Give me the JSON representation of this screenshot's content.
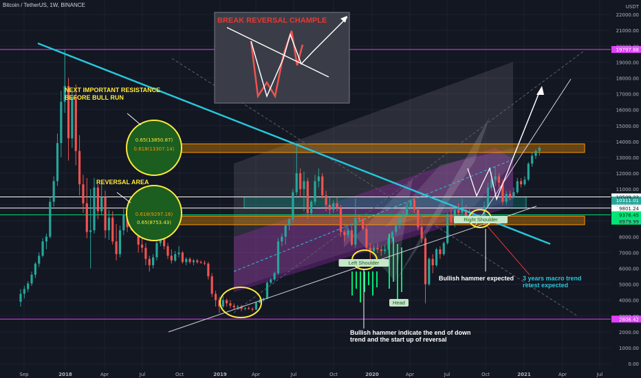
{
  "header": {
    "symbol_title": "Bitcoin / TetherUS, 1W, BINANCE",
    "quote_unit": "USDT"
  },
  "chart_data": {
    "type": "candlestick",
    "title": "Bitcoin / TetherUS, 1W, BINANCE",
    "y_ticks": [
      0,
      1000,
      2000,
      3000,
      4000,
      5000,
      6000,
      7000,
      8000,
      9000,
      10000,
      11000,
      12000,
      13000,
      14000,
      15000,
      16000,
      17000,
      18000,
      19000,
      20000,
      21000,
      22000
    ],
    "y_tick_labels": [
      "0.00",
      "1000.00",
      "2000.00",
      "3000.00",
      "4000.00",
      "5000.00",
      "6000.00",
      "7000.00",
      "8000.00",
      "9000.00",
      "10000.00",
      "11000.00",
      "12000.00",
      "13000.00",
      "14000.00",
      "15000.00",
      "16000.00",
      "17000.00",
      "18000.00",
      "19000.00",
      "20000.00",
      "21000.00",
      "22000.00"
    ],
    "ylim": [
      -300,
      22700
    ],
    "x_tick_labels": [
      "Sep",
      "2018",
      "Apr",
      "Jul",
      "Oct",
      "2019",
      "Apr",
      "Jul",
      "Oct",
      "2020",
      "Apr",
      "Jul",
      "Oct",
      "2021",
      "Apr",
      "Jul"
    ],
    "price_tags": [
      {
        "label": "19797.88",
        "value": 19797.88,
        "color": "#e040fb"
      },
      {
        "label": "10509.22",
        "value": 10509.22,
        "color": "#ffffff"
      },
      {
        "label": "10311.01",
        "value": 10311.01,
        "color": "#26a69a"
      },
      {
        "label": "09:33:15",
        "value": 9900,
        "color": "#26a69a"
      },
      {
        "label": "9801.24",
        "value": 9801.24,
        "color": "#ffffff"
      },
      {
        "label": "9376.45",
        "value": 9376.45,
        "color": "#00e676"
      },
      {
        "label": "8979.99",
        "value": 8979.99,
        "color": "#00e676"
      },
      {
        "label": "2806.42",
        "value": 2806.42,
        "color": "#e040fb"
      }
    ],
    "horizontal_lines": [
      19797.88,
      10509.22,
      9801.24,
      2806.42
    ],
    "fib_labels": [
      "0.65(13850.87)",
      "0.618(13307.14)",
      "0.618(9297.16)",
      "0.65(8753.43)"
    ],
    "fib_levels": [
      13850.87,
      13307.14,
      9297.16,
      8753.43
    ],
    "candles": [
      [
        3900,
        4700,
        3600,
        4400
      ],
      [
        4400,
        4900,
        4100,
        4700
      ],
      [
        4700,
        5200,
        4500,
        5050
      ],
      [
        5050,
        5800,
        4900,
        5600
      ],
      [
        5600,
        6400,
        5400,
        6300
      ],
      [
        6300,
        7000,
        6100,
        6800
      ],
      [
        6800,
        7900,
        6700,
        7700
      ],
      [
        7700,
        8200,
        7200,
        8000
      ],
      [
        8000,
        10500,
        7900,
        10200
      ],
      [
        10200,
        11800,
        9900,
        11500
      ],
      [
        11500,
        14500,
        11200,
        13900
      ],
      [
        13900,
        17200,
        13000,
        16500
      ],
      [
        16500,
        19800,
        15800,
        17500
      ],
      [
        17500,
        18000,
        12800,
        14200
      ],
      [
        14200,
        17100,
        13600,
        16800
      ],
      [
        16800,
        17600,
        12500,
        13400
      ],
      [
        13400,
        14400,
        10600,
        11300
      ],
      [
        11300,
        11900,
        9500,
        10100
      ],
      [
        10100,
        11700,
        7900,
        8300
      ],
      [
        8300,
        11000,
        6000,
        8400
      ],
      [
        8400,
        11700,
        8200,
        11100
      ],
      [
        11100,
        11300,
        9100,
        9600
      ],
      [
        9600,
        11500,
        9400,
        10500
      ],
      [
        10500,
        10900,
        7900,
        8400
      ],
      [
        8400,
        9700,
        7800,
        9200
      ],
      [
        9200,
        9600,
        7500,
        7700
      ],
      [
        7700,
        8800,
        6500,
        6900
      ],
      [
        6900,
        8700,
        6700,
        8400
      ],
      [
        8400,
        9800,
        8100,
        9400
      ],
      [
        9400,
        9500,
        8300,
        8600
      ],
      [
        8600,
        9400,
        8400,
        9200
      ],
      [
        9200,
        9800,
        8500,
        8700
      ],
      [
        8700,
        8800,
        7000,
        7500
      ],
      [
        7500,
        8200,
        7000,
        7300
      ],
      [
        7300,
        7600,
        6200,
        6600
      ],
      [
        6600,
        6800,
        5800,
        6200
      ],
      [
        6200,
        6900,
        6000,
        6700
      ],
      [
        6700,
        7800,
        6500,
        7600
      ],
      [
        7600,
        8500,
        7400,
        8200
      ],
      [
        8200,
        8300,
        7200,
        7400
      ],
      [
        7400,
        7600,
        6600,
        6800
      ],
      [
        6800,
        7200,
        6300,
        6500
      ],
      [
        6500,
        7100,
        6400,
        6900
      ],
      [
        6900,
        7400,
        6700,
        7000
      ],
      [
        7000,
        7100,
        6300,
        6400
      ],
      [
        6400,
        6700,
        6200,
        6600
      ],
      [
        6600,
        6700,
        6300,
        6400
      ],
      [
        6400,
        6600,
        6200,
        6500
      ],
      [
        6500,
        6600,
        6300,
        6400
      ],
      [
        6400,
        6500,
        6300,
        6350
      ],
      [
        6350,
        6500,
        6200,
        6300
      ],
      [
        6300,
        6400,
        5300,
        5500
      ],
      [
        5500,
        5700,
        4200,
        4400
      ],
      [
        4400,
        4600,
        3600,
        4000
      ],
      [
        4000,
        4200,
        3200,
        3600
      ],
      [
        3600,
        4300,
        3500,
        4000
      ],
      [
        4000,
        4100,
        3600,
        3800
      ],
      [
        3800,
        4000,
        3500,
        3650
      ],
      [
        3650,
        3800,
        3400,
        3550
      ],
      [
        3550,
        3700,
        3400,
        3600
      ],
      [
        3600,
        3700,
        3300,
        3450
      ],
      [
        3450,
        3550,
        3350,
        3500
      ],
      [
        3500,
        3600,
        3400,
        3450
      ],
      [
        3450,
        3550,
        3300,
        3400
      ],
      [
        3400,
        3900,
        3380,
        3850
      ],
      [
        3850,
        4100,
        3800,
        4000
      ],
      [
        4000,
        4150,
        3900,
        4100
      ],
      [
        4100,
        5200,
        4050,
        5100
      ],
      [
        5100,
        5400,
        5000,
        5300
      ],
      [
        5300,
        5800,
        5200,
        5700
      ],
      [
        5700,
        7900,
        5600,
        7700
      ],
      [
        7700,
        8200,
        7400,
        8000
      ],
      [
        8000,
        8800,
        7500,
        8700
      ],
      [
        8700,
        9200,
        8400,
        9100
      ],
      [
        9100,
        11000,
        8900,
        10800
      ],
      [
        10800,
        13900,
        10600,
        12000
      ],
      [
        12000,
        12300,
        10500,
        11000
      ],
      [
        11000,
        12100,
        9600,
        11500
      ],
      [
        11500,
        11700,
        9100,
        9500
      ],
      [
        9500,
        10300,
        9400,
        10200
      ],
      [
        10200,
        11900,
        10000,
        11500
      ],
      [
        11500,
        12300,
        11100,
        11800
      ],
      [
        11800,
        12000,
        10400,
        10600
      ],
      [
        10600,
        10900,
        9600,
        10000
      ],
      [
        10000,
        10500,
        9400,
        9700
      ],
      [
        9700,
        10300,
        9500,
        10100
      ],
      [
        10100,
        10500,
        9600,
        9800
      ],
      [
        9800,
        10000,
        8000,
        8300
      ],
      [
        8300,
        8400,
        7700,
        8100
      ],
      [
        8100,
        8600,
        7900,
        8400
      ],
      [
        8400,
        8700,
        7400,
        7500
      ],
      [
        7500,
        10400,
        7300,
        9200
      ],
      [
        9200,
        9400,
        8900,
        9100
      ],
      [
        9100,
        9300,
        8400,
        8500
      ],
      [
        8500,
        8800,
        7100,
        7300
      ],
      [
        7300,
        7600,
        6500,
        7100
      ],
      [
        7100,
        7500,
        6900,
        7300
      ],
      [
        7300,
        7600,
        7000,
        7200
      ],
      [
        7200,
        7400,
        6800,
        7100
      ],
      [
        7100,
        7500,
        6900,
        7200
      ],
      [
        7200,
        8100,
        7000,
        7900
      ],
      [
        7900,
        8400,
        7700,
        8300
      ],
      [
        8300,
        8800,
        8100,
        8700
      ],
      [
        8700,
        9300,
        8500,
        9200
      ],
      [
        9200,
        9600,
        8900,
        9400
      ],
      [
        9400,
        10100,
        9300,
        9900
      ],
      [
        9900,
        10400,
        9700,
        10300
      ],
      [
        10300,
        10500,
        9500,
        9700
      ],
      [
        9700,
        9900,
        8400,
        8600
      ],
      [
        8600,
        9100,
        7600,
        7900
      ],
      [
        7900,
        8000,
        3800,
        5000
      ],
      [
        5000,
        6700,
        4900,
        6600
      ],
      [
        6600,
        6900,
        5700,
        6200
      ],
      [
        6200,
        7300,
        6100,
        7200
      ],
      [
        7200,
        7400,
        6600,
        6900
      ],
      [
        6900,
        7700,
        6800,
        7600
      ],
      [
        7600,
        9500,
        7500,
        9400
      ],
      [
        9400,
        10000,
        8700,
        8900
      ],
      [
        8900,
        9900,
        8600,
        9700
      ],
      [
        9700,
        10100,
        9200,
        9500
      ],
      [
        9500,
        10400,
        9400,
        9700
      ],
      [
        9700,
        10000,
        9100,
        9300
      ],
      [
        9300,
        9800,
        9200,
        9400
      ],
      [
        9400,
        9500,
        8900,
        9100
      ],
      [
        9100,
        9400,
        9000,
        9200
      ],
      [
        9200,
        9300,
        9000,
        9150
      ],
      [
        9150,
        10200,
        9100,
        9900
      ],
      [
        9900,
        11400,
        9800,
        11100
      ],
      [
        11100,
        12100,
        10900,
        11600
      ],
      [
        11600,
        12400,
        11200,
        11800
      ],
      [
        11800,
        12000,
        11100,
        11400
      ],
      [
        11400,
        11600,
        10000,
        10200
      ],
      [
        10200,
        10900,
        10000,
        10700
      ],
      [
        10700,
        10900,
        10300,
        10500
      ],
      [
        10500,
        11100,
        10400,
        10800
      ],
      [
        10800,
        11700,
        10700,
        11500
      ],
      [
        11500,
        11700,
        11100,
        11300
      ],
      [
        11300,
        11800,
        11200,
        11600
      ],
      [
        11600,
        12700,
        11500,
        12600
      ],
      [
        12600,
        13300,
        12400,
        13100
      ],
      [
        13100,
        13500,
        12900,
        13400
      ],
      [
        13400,
        13700,
        13100,
        13600
      ]
    ]
  },
  "annotations": {
    "resistance_note": "NEXT IMPORTANT RESISTANCE\nBEFORE BULL RUN",
    "reversal_area": "REVERSAL AREA",
    "pattern_box_title": "BREAK REVERSAL CHAMPLE",
    "left_shoulder": "Left Shoulder",
    "head": "Head",
    "right_shoulder": "Right Shoulder",
    "bullish_hammer_expected": "Bullish hammer expected",
    "macro_trend_note": "3 years macro trend\nretest expected",
    "hammer_note": "Bullish hammer indicate the end of down\ntrend and the start up of reversal"
  },
  "colors": {
    "background": "#131722",
    "up": "#26a69a",
    "down": "#ef5350",
    "annotation": "#ffeb3b",
    "trendline": "#26c6da",
    "magenta": "#e040fb",
    "orange_band": "#ff9800",
    "green_circle": "#1b5e20"
  }
}
